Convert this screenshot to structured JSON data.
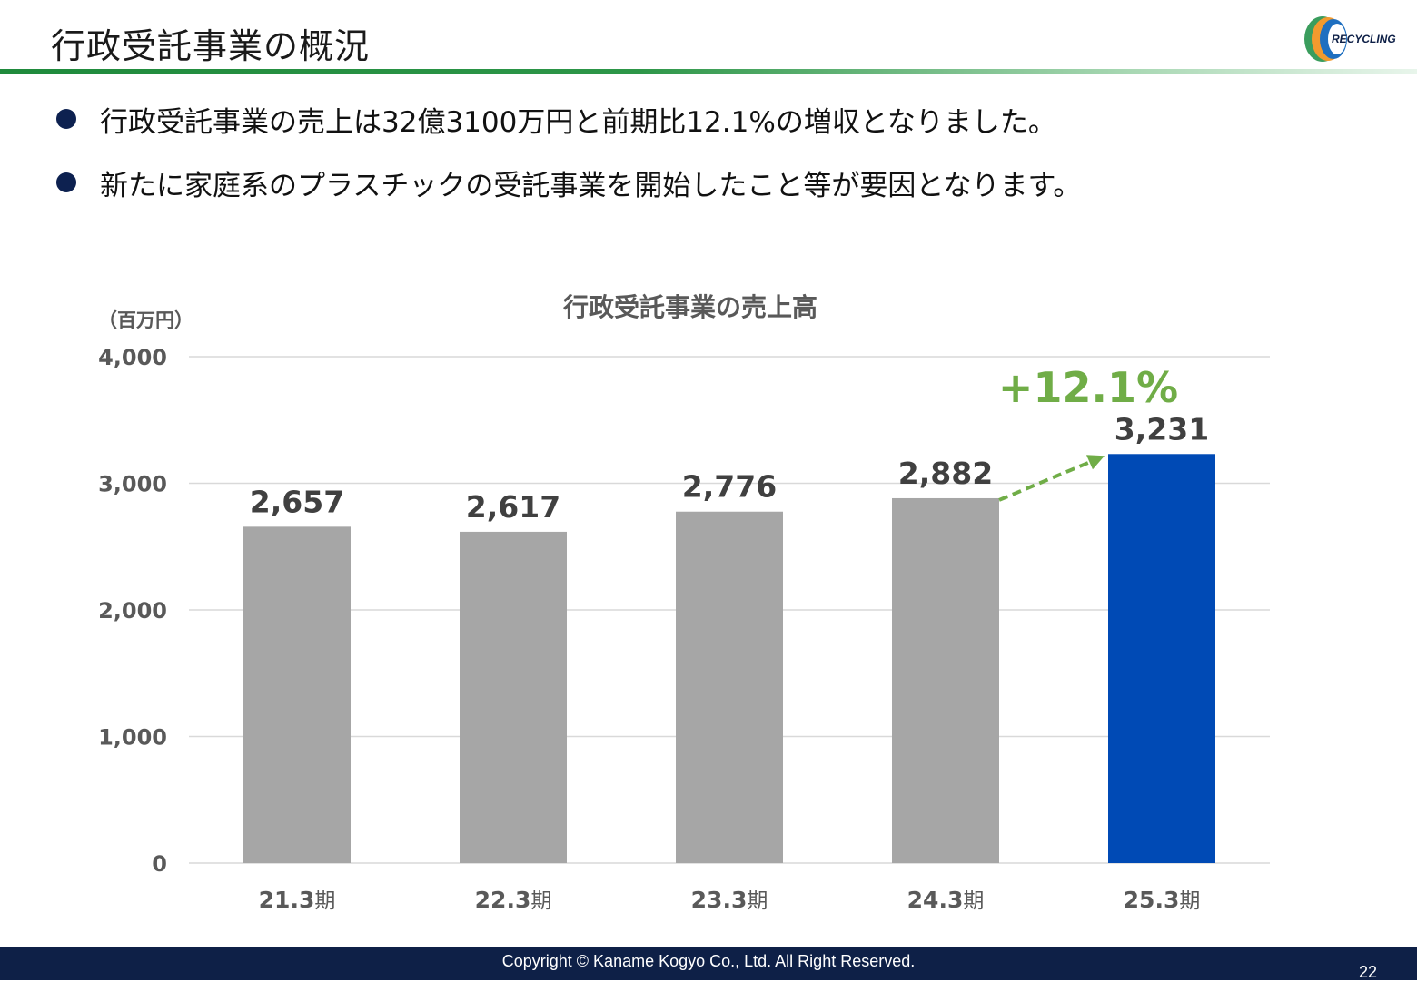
{
  "header": {
    "title": "行政受託事業の概況",
    "logo_text": "RECYCLING",
    "rule_color": "#1f8a3c"
  },
  "bullets": [
    {
      "text": "行政受託事業の売上は32億3100万円と前期比12.1%の増収となりました。"
    },
    {
      "text": "新たに家庭系のプラスチックの受託事業を開始したこと等が要因となります。"
    }
  ],
  "chart_data": {
    "type": "bar",
    "title": "行政受託事業の売上高",
    "unit_label": "（百万円）",
    "categories": [
      "21.3",
      "22.3",
      "23.3",
      "24.3",
      "25.3"
    ],
    "category_suffix": "期",
    "values": [
      2657,
      2617,
      2776,
      2882,
      3231
    ],
    "value_labels": [
      "2,657",
      "2,617",
      "2,776",
      "2,882",
      "3,231"
    ],
    "ylim": [
      0,
      4000
    ],
    "yticks": [
      0,
      1000,
      2000,
      3000,
      4000
    ],
    "ytick_labels": [
      "0",
      "1,000",
      "2,000",
      "3,000",
      "4,000"
    ],
    "grid": true,
    "colors": {
      "default": "#a6a6a6",
      "highlight": "#004ab5",
      "growth": "#70ad47"
    },
    "highlight_index": 4,
    "annotation": {
      "text": "+12.1%",
      "from_index": 3,
      "to_index": 4
    }
  },
  "footer": {
    "copyright": "Copyright © Kaname Kogyo Co., Ltd. All Right Reserved.",
    "page_number": "22"
  }
}
